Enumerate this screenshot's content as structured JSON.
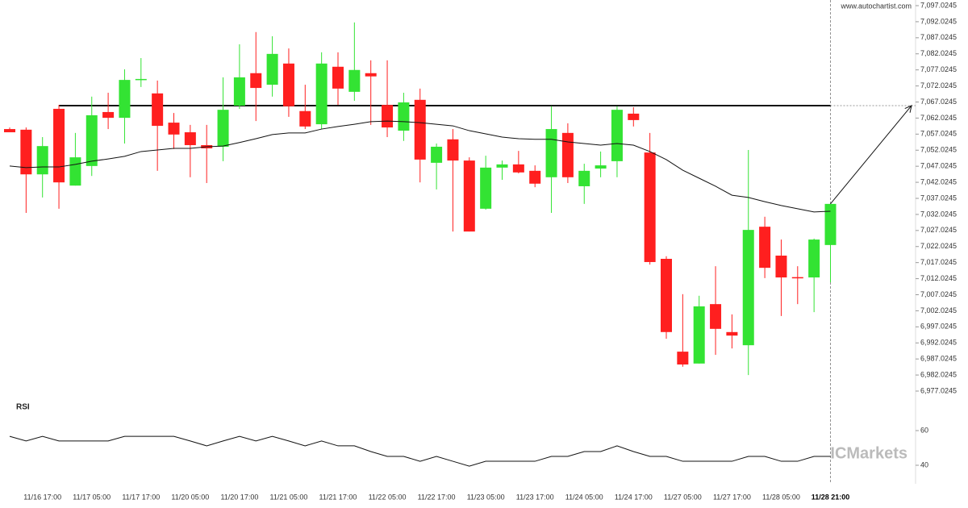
{
  "chart_data": {
    "type": "candlestick",
    "source": "www.autochartist.com",
    "watermark": "ICMarkets",
    "up_color": "#33e333",
    "down_color": "#ff1f1f",
    "categories": [
      null,
      null,
      "11/16 17:00",
      null,
      null,
      "11/17 05:00",
      null,
      null,
      "11/17 17:00",
      null,
      null,
      "11/20 05:00",
      null,
      null,
      "11/20 17:00",
      null,
      null,
      "11/21 05:00",
      null,
      null,
      "11/21 17:00",
      null,
      null,
      "11/22 05:00",
      null,
      null,
      "11/22 17:00",
      null,
      null,
      "11/23 05:00",
      null,
      null,
      "11/23 17:00",
      null,
      null,
      "11/24 05:00",
      null,
      null,
      "11/24 17:00",
      null,
      null,
      "11/27 05:00",
      null,
      null,
      "11/27 17:00",
      null,
      null,
      "11/28 05:00",
      null,
      null,
      "11/28 21:00"
    ],
    "open": [
      7058.6,
      7058.4,
      7044.5,
      7064.9,
      7041.0,
      7047.1,
      7063.9,
      7062.1,
      7074.0,
      7069.7,
      7060.6,
      7057.6,
      7053.6,
      7053.1,
      7065.9,
      7076.0,
      7072.4,
      7079.0,
      7064.2,
      7060.1,
      7078.0,
      7070.2,
      7076.0,
      7066.1,
      7058.1,
      7067.7,
      7048.1,
      7055.4,
      7048.8,
      7033.8,
      7046.6,
      7047.6,
      7045.6,
      7043.6,
      7057.4,
      7040.8,
      7046.3,
      7048.6,
      7063.4,
      7051.3,
      7018.2,
      6989.3,
      6985.6,
      7004.1,
      6995.4,
      6991.3,
      7028.2,
      7019.2,
      7012.5,
      7012.4,
      7022.5
    ],
    "high": [
      7059.1,
      7059.1,
      7056.1,
      7066.1,
      7057.4,
      7068.7,
      7069.9,
      7077.2,
      7080.7,
      7073.7,
      7063.6,
      7059.9,
      7059.9,
      7074.7,
      7085.0,
      7088.8,
      7087.5,
      7083.7,
      7072.4,
      7082.5,
      7082.5,
      7091.8,
      7080.0,
      7080.0,
      7069.9,
      7071.2,
      7054.1,
      7058.6,
      7049.8,
      7050.3,
      7048.8,
      7051.8,
      7047.3,
      7065.7,
      7060.4,
      7047.8,
      7051.6,
      7065.7,
      7065.4,
      7057.4,
      7019.0,
      7007.2,
      7006.7,
      7015.9,
      7000.9,
      7052.1,
      7031.3,
      7024.2,
      7015.9,
      7024.5,
      7035.3
    ],
    "low": [
      7057.6,
      7032.5,
      7037.3,
      7033.8,
      7041.0,
      7044.0,
      7058.6,
      7054.1,
      7071.7,
      7045.6,
      7052.4,
      7043.6,
      7041.8,
      7048.6,
      7064.9,
      7061.1,
      7068.7,
      7062.4,
      7058.6,
      7058.6,
      7066.1,
      7067.4,
      7059.9,
      7056.1,
      7054.9,
      7042.0,
      7039.8,
      7026.7,
      7026.7,
      7033.5,
      7042.8,
      7044.8,
      7040.5,
      7032.5,
      7041.8,
      7035.3,
      7043.6,
      7043.6,
      7059.4,
      7016.4,
      6993.3,
      6984.6,
      6985.6,
      6988.3,
      6990.3,
      6982.0,
      7012.2,
      7000.4,
      7004.1,
      7001.6,
      7010.9
    ],
    "close": [
      7057.6,
      7044.5,
      7053.3,
      7042.0,
      7049.8,
      7062.9,
      7062.1,
      7073.9,
      7074.2,
      7059.6,
      7056.9,
      7053.6,
      7052.6,
      7064.6,
      7074.7,
      7071.4,
      7082.0,
      7065.7,
      7059.4,
      7079.0,
      7071.2,
      7077.0,
      7075.0,
      7059.1,
      7066.9,
      7049.1,
      7053.1,
      7048.8,
      7026.7,
      7046.6,
      7047.6,
      7045.1,
      7041.6,
      7058.6,
      7043.6,
      7045.6,
      7047.3,
      7064.6,
      7061.4,
      7017.2,
      6995.4,
      6985.3,
      7003.4,
      6996.4,
      6994.3,
      7027.2,
      7015.4,
      7012.4,
      7012.2,
      7024.2,
      7035.3
    ],
    "moving_average": [
      7047.1,
      7046.6,
      7046.8,
      7046.8,
      7047.6,
      7048.6,
      7049.3,
      7050.1,
      7051.6,
      7052.1,
      7052.6,
      7052.6,
      7053.1,
      7053.3,
      7054.4,
      7055.6,
      7056.9,
      7057.4,
      7057.4,
      7058.6,
      7059.4,
      7060.1,
      7060.9,
      7061.1,
      7060.9,
      7060.6,
      7060.1,
      7059.6,
      7058.1,
      7057.1,
      7056.1,
      7055.6,
      7055.4,
      7055.4,
      7054.6,
      7054.1,
      7053.6,
      7054.1,
      7053.6,
      7051.6,
      7049.1,
      7045.8,
      7043.3,
      7040.8,
      7038.0,
      7037.3,
      7036.0,
      7034.8,
      7033.8,
      7032.8,
      7033.0
    ],
    "resistance": 7065.9,
    "ylim": [
      6977.0245,
      7097.0245
    ],
    "yticks": [
      {
        "value": 7097.0245,
        "label": "7,097.0245"
      },
      {
        "value": 7092.0245,
        "label": "7,092.0245"
      },
      {
        "value": 7087.0245,
        "label": "7,087.0245"
      },
      {
        "value": 7082.0245,
        "label": "7,082.0245"
      },
      {
        "value": 7077.0245,
        "label": "7,077.0245"
      },
      {
        "value": 7072.0245,
        "label": "7,072.0245"
      },
      {
        "value": 7067.0245,
        "label": "7,067.0245"
      },
      {
        "value": 7062.0245,
        "label": "7,062.0245"
      },
      {
        "value": 7057.0245,
        "label": "7,057.0245"
      },
      {
        "value": 7052.0245,
        "label": "7,052.0245"
      },
      {
        "value": 7047.0245,
        "label": "7,047.0245"
      },
      {
        "value": 7042.0245,
        "label": "7,042.0245"
      },
      {
        "value": 7037.0245,
        "label": "7,037.0245"
      },
      {
        "value": 7032.0245,
        "label": "7,032.0245"
      },
      {
        "value": 7027.0245,
        "label": "7,027.0245"
      },
      {
        "value": 7022.0245,
        "label": "7,022.0245"
      },
      {
        "value": 7017.0245,
        "label": "7,017.0245"
      },
      {
        "value": 7012.0245,
        "label": "7,012.0245"
      },
      {
        "value": 7007.0245,
        "label": "7,007.0245"
      },
      {
        "value": 7002.0245,
        "label": "7,002.0245"
      },
      {
        "value": 6997.0245,
        "label": "6,997.0245"
      },
      {
        "value": 6992.0245,
        "label": "6,992.0245"
      },
      {
        "value": 6987.0245,
        "label": "6,987.0245"
      },
      {
        "value": 6982.0245,
        "label": "6,982.0245"
      },
      {
        "value": 6977.0245,
        "label": "6,977.0245"
      }
    ],
    "rsi": {
      "title": "RSI",
      "values": [
        56.7,
        54.0,
        56.7,
        54.0,
        54.0,
        54.0,
        54.0,
        56.7,
        56.7,
        56.7,
        56.7,
        54.0,
        51.2,
        54.0,
        56.7,
        54.0,
        56.7,
        54.0,
        51.2,
        54.0,
        51.2,
        51.2,
        47.9,
        45.1,
        45.1,
        42.3,
        45.1,
        42.3,
        39.5,
        42.3,
        42.3,
        42.3,
        42.3,
        45.1,
        45.1,
        47.9,
        47.9,
        51.2,
        47.9,
        45.1,
        45.1,
        42.3,
        42.3,
        42.3,
        42.3,
        45.1,
        45.1,
        42.3,
        42.3,
        45.1,
        45.1
      ],
      "ylim": [
        30,
        75
      ],
      "yticks": [
        40,
        60
      ]
    }
  }
}
